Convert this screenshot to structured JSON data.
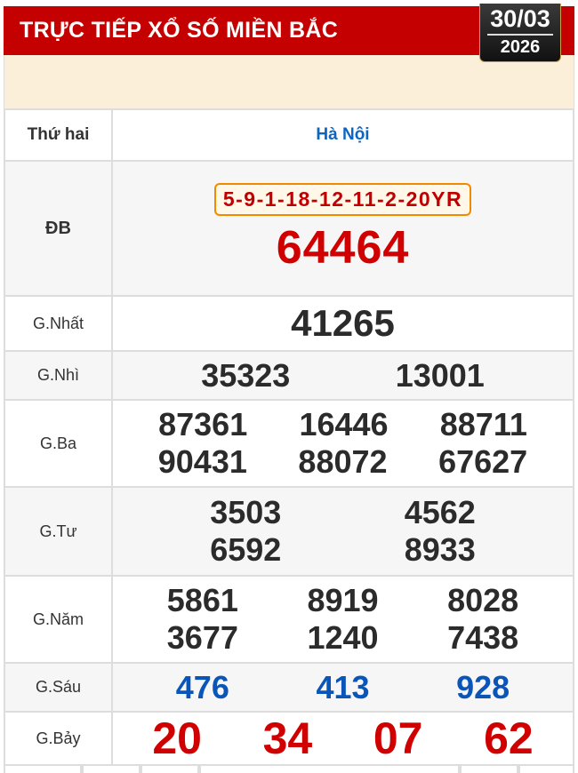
{
  "header": {
    "title": "TRỰC TIẾP XỔ SỐ MIỀN BẮC",
    "date": "30/03",
    "year": "2026"
  },
  "table": {
    "day": "Thứ hai",
    "province": "Hà Nội",
    "db": {
      "label": "ĐB",
      "code": "5-9-1-18-12-11-2-20YR",
      "number": "64464"
    },
    "nhat": {
      "label": "G.Nhất",
      "numbers": [
        "41265"
      ]
    },
    "nhi": {
      "label": "G.Nhì",
      "numbers": [
        "35323",
        "13001"
      ]
    },
    "ba": {
      "label": "G.Ba",
      "numbers": [
        "87361",
        "16446",
        "88711",
        "90431",
        "88072",
        "67627"
      ]
    },
    "tu": {
      "label": "G.Tư",
      "numbers": [
        "3503",
        "4562",
        "6592",
        "8933"
      ]
    },
    "nam": {
      "label": "G.Năm",
      "numbers": [
        "5861",
        "8919",
        "8028",
        "3677",
        "1240",
        "7438"
      ]
    },
    "sau": {
      "label": "G.Sáu",
      "numbers": [
        "476",
        "413",
        "928"
      ]
    },
    "bay": {
      "label": "G.Bảy",
      "numbers": [
        "20",
        "34",
        "07",
        "62"
      ]
    }
  },
  "colors": {
    "header": "#c40000",
    "special": "#d00000",
    "g6": "#0a55b8",
    "province": "#0a66c2"
  }
}
